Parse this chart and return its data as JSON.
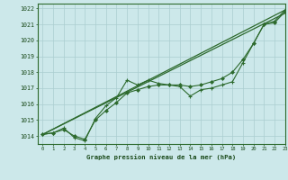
{
  "title": "Graphe pression niveau de la mer (hPa)",
  "bg_color": "#cce8ea",
  "grid_color": "#aacdd0",
  "line_color": "#2d6a2d",
  "marker_color": "#2d6a2d",
  "xlim": [
    -0.5,
    23
  ],
  "ylim": [
    1013.5,
    1022.3
  ],
  "xticks": [
    0,
    1,
    2,
    3,
    4,
    5,
    6,
    7,
    8,
    9,
    10,
    11,
    12,
    13,
    14,
    15,
    16,
    17,
    18,
    19,
    20,
    21,
    22,
    23
  ],
  "yticks": [
    1014,
    1015,
    1016,
    1017,
    1018,
    1019,
    1020,
    1021,
    1022
  ],
  "series_straight1": {
    "x": [
      0,
      23
    ],
    "y": [
      1014.1,
      1021.9
    ]
  },
  "series_straight2": {
    "x": [
      0,
      23
    ],
    "y": [
      1014.1,
      1021.7
    ]
  },
  "series_zigzag": {
    "x": [
      0,
      1,
      2,
      3,
      4,
      5,
      6,
      7,
      8,
      9,
      10,
      11,
      12,
      13,
      14,
      15,
      16,
      17,
      18,
      19,
      20,
      21,
      22,
      23
    ],
    "y": [
      1014.1,
      1014.2,
      1014.5,
      1013.9,
      1013.7,
      1015.1,
      1015.9,
      1016.4,
      1017.5,
      1017.2,
      1017.5,
      1017.3,
      1017.2,
      1017.1,
      1016.5,
      1016.9,
      1017.0,
      1017.2,
      1017.4,
      1018.6,
      1019.8,
      1021.0,
      1021.2,
      1021.9
    ]
  },
  "series_smooth": {
    "x": [
      0,
      1,
      2,
      3,
      4,
      5,
      6,
      7,
      8,
      9,
      10,
      11,
      12,
      13,
      14,
      15,
      16,
      17,
      18,
      19,
      20,
      21,
      22,
      23
    ],
    "y": [
      1014.1,
      1014.2,
      1014.4,
      1014.0,
      1013.8,
      1015.0,
      1015.6,
      1016.1,
      1016.7,
      1016.9,
      1017.1,
      1017.2,
      1017.2,
      1017.2,
      1017.1,
      1017.2,
      1017.4,
      1017.6,
      1018.0,
      1018.8,
      1019.8,
      1021.0,
      1021.1,
      1021.8
    ]
  }
}
